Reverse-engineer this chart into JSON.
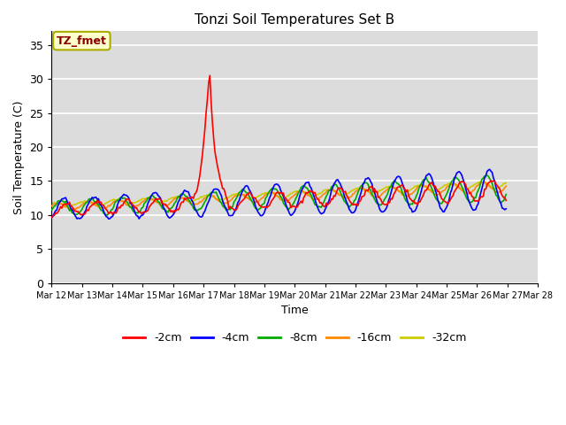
{
  "title": "Tonzi Soil Temperatures Set B",
  "xlabel": "Time",
  "ylabel": "Soil Temperature (C)",
  "ylim": [
    0,
    37
  ],
  "yticks": [
    0,
    5,
    10,
    15,
    20,
    25,
    30,
    35
  ],
  "bg_color": "#dcdcdc",
  "annotation_text": "TZ_fmet",
  "annotation_color": "#8b0000",
  "annotation_bg": "#ffffcc",
  "annotation_edge": "#aaaa00",
  "series_colors": {
    "-2cm": "#ff0000",
    "-4cm": "#0000ff",
    "-8cm": "#00aa00",
    "-16cm": "#ff8800",
    "-32cm": "#cccc00"
  },
  "n_days": 15,
  "start_day": 12,
  "end_day": 27,
  "pts_per_day": 24
}
